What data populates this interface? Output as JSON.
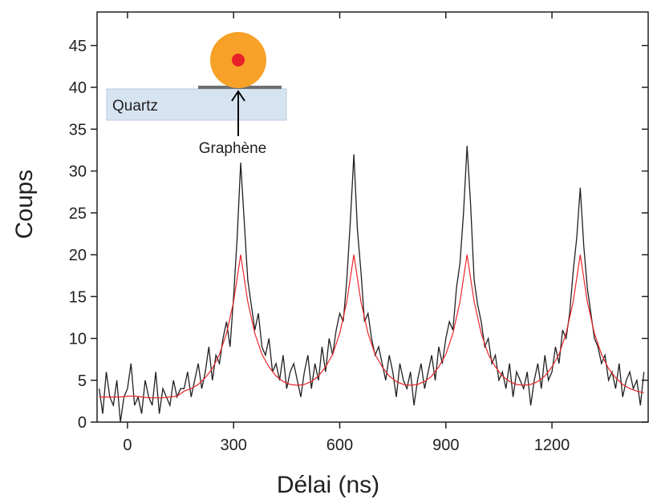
{
  "chart_data": {
    "type": "line",
    "xlabel": "Délai (ns)",
    "ylabel": "Coups",
    "xlim": [
      -86,
      1472
    ],
    "ylim": [
      0,
      49
    ],
    "xticks": [
      0,
      300,
      600,
      900,
      1200
    ],
    "yticks": [
      0,
      5,
      10,
      15,
      20,
      25,
      30,
      35,
      40,
      45
    ],
    "annotations": [
      "Quartz",
      "Graphène"
    ],
    "series": [
      {
        "color": "#231f20",
        "x": [
          -80,
          -70,
          -60,
          -50,
          -40,
          -30,
          -20,
          -10,
          0,
          10,
          20,
          30,
          40,
          50,
          60,
          70,
          80,
          90,
          100,
          110,
          120,
          130,
          140,
          150,
          160,
          170,
          180,
          190,
          200,
          210,
          220,
          230,
          240,
          250,
          260,
          270,
          280,
          290,
          300,
          310,
          320,
          330,
          340,
          350,
          360,
          370,
          380,
          390,
          400,
          410,
          420,
          430,
          440,
          450,
          460,
          470,
          480,
          490,
          500,
          510,
          520,
          530,
          540,
          550,
          560,
          570,
          580,
          590,
          600,
          610,
          620,
          630,
          640,
          650,
          660,
          670,
          680,
          690,
          700,
          710,
          720,
          730,
          740,
          750,
          760,
          770,
          780,
          790,
          800,
          810,
          820,
          830,
          840,
          850,
          860,
          870,
          880,
          890,
          900,
          910,
          920,
          930,
          940,
          950,
          960,
          970,
          980,
          990,
          1000,
          1010,
          1020,
          1030,
          1040,
          1050,
          1060,
          1070,
          1080,
          1090,
          1100,
          1110,
          1120,
          1130,
          1140,
          1150,
          1160,
          1170,
          1180,
          1190,
          1200,
          1210,
          1220,
          1230,
          1240,
          1250,
          1260,
          1270,
          1280,
          1290,
          1300,
          1310,
          1320,
          1330,
          1340,
          1350,
          1360,
          1370,
          1380,
          1390,
          1400,
          1410,
          1420,
          1430,
          1440,
          1450,
          1460
        ],
        "values": [
          4,
          1,
          6,
          3,
          2,
          5,
          0,
          3,
          4,
          7,
          2,
          3,
          1,
          5,
          3,
          2,
          6,
          1,
          4,
          3,
          2,
          5,
          3,
          4,
          4,
          6,
          3,
          5,
          7,
          4,
          6,
          9,
          5,
          8,
          7,
          10,
          12,
          9,
          15,
          22,
          31,
          24,
          17,
          14,
          11,
          13,
          9,
          8,
          10,
          6,
          7,
          5,
          8,
          4,
          6,
          7,
          5,
          3,
          6,
          8,
          4,
          7,
          5,
          9,
          6,
          10,
          8,
          11,
          13,
          12,
          17,
          24,
          32,
          23,
          18,
          12,
          13,
          10,
          8,
          9,
          7,
          5,
          8,
          6,
          3,
          7,
          5,
          4,
          6,
          2,
          5,
          7,
          4,
          6,
          8,
          5,
          9,
          7,
          10,
          12,
          11,
          16,
          19,
          25,
          33,
          26,
          17,
          14,
          12,
          9,
          10,
          7,
          8,
          5,
          6,
          4,
          7,
          3,
          6,
          5,
          4,
          6,
          2,
          5,
          7,
          4,
          8,
          5,
          6,
          9,
          7,
          11,
          10,
          13,
          18,
          22,
          28,
          21,
          16,
          13,
          10,
          9,
          7,
          8,
          5,
          6,
          4,
          7,
          3,
          5,
          6,
          4,
          5,
          2,
          6
        ]
      },
      {
        "color": "#e8272a",
        "x": [
          -80,
          -60,
          -40,
          -20,
          0,
          20,
          40,
          60,
          80,
          100,
          120,
          140,
          160,
          180,
          200,
          220,
          240,
          260,
          280,
          300,
          320,
          340,
          360,
          380,
          400,
          420,
          440,
          460,
          480,
          500,
          520,
          540,
          560,
          580,
          600,
          620,
          640,
          660,
          680,
          700,
          720,
          740,
          760,
          780,
          800,
          820,
          840,
          860,
          880,
          900,
          920,
          940,
          960,
          980,
          1000,
          1020,
          1040,
          1060,
          1080,
          1100,
          1120,
          1140,
          1160,
          1180,
          1200,
          1220,
          1240,
          1260,
          1280,
          1300,
          1320,
          1340,
          1360,
          1380,
          1400,
          1420,
          1440,
          1460
        ],
        "values": [
          3,
          3,
          3,
          3,
          3.1,
          3.1,
          3,
          2.9,
          2.9,
          2.9,
          3,
          3.1,
          3.7,
          4,
          4.5,
          5.3,
          6.4,
          8.1,
          10.6,
          14.4,
          20,
          14.4,
          10.6,
          8.1,
          6.6,
          5.5,
          4.85,
          4.5,
          4.4,
          4.5,
          4.85,
          5.5,
          6.6,
          8.1,
          10.6,
          14.4,
          20,
          14.4,
          10.6,
          8.1,
          6.6,
          5.5,
          4.85,
          4.5,
          4.4,
          4.5,
          4.85,
          5.5,
          6.6,
          8.1,
          10.6,
          14.4,
          20,
          14.4,
          10.6,
          8.1,
          6.6,
          5.5,
          4.85,
          4.5,
          4.4,
          4.5,
          4.85,
          5.5,
          6.6,
          8.1,
          10.6,
          14.4,
          20,
          14.4,
          10.6,
          8.1,
          6.4,
          5.3,
          4.5,
          4,
          3.7,
          3.5
        ]
      }
    ]
  }
}
